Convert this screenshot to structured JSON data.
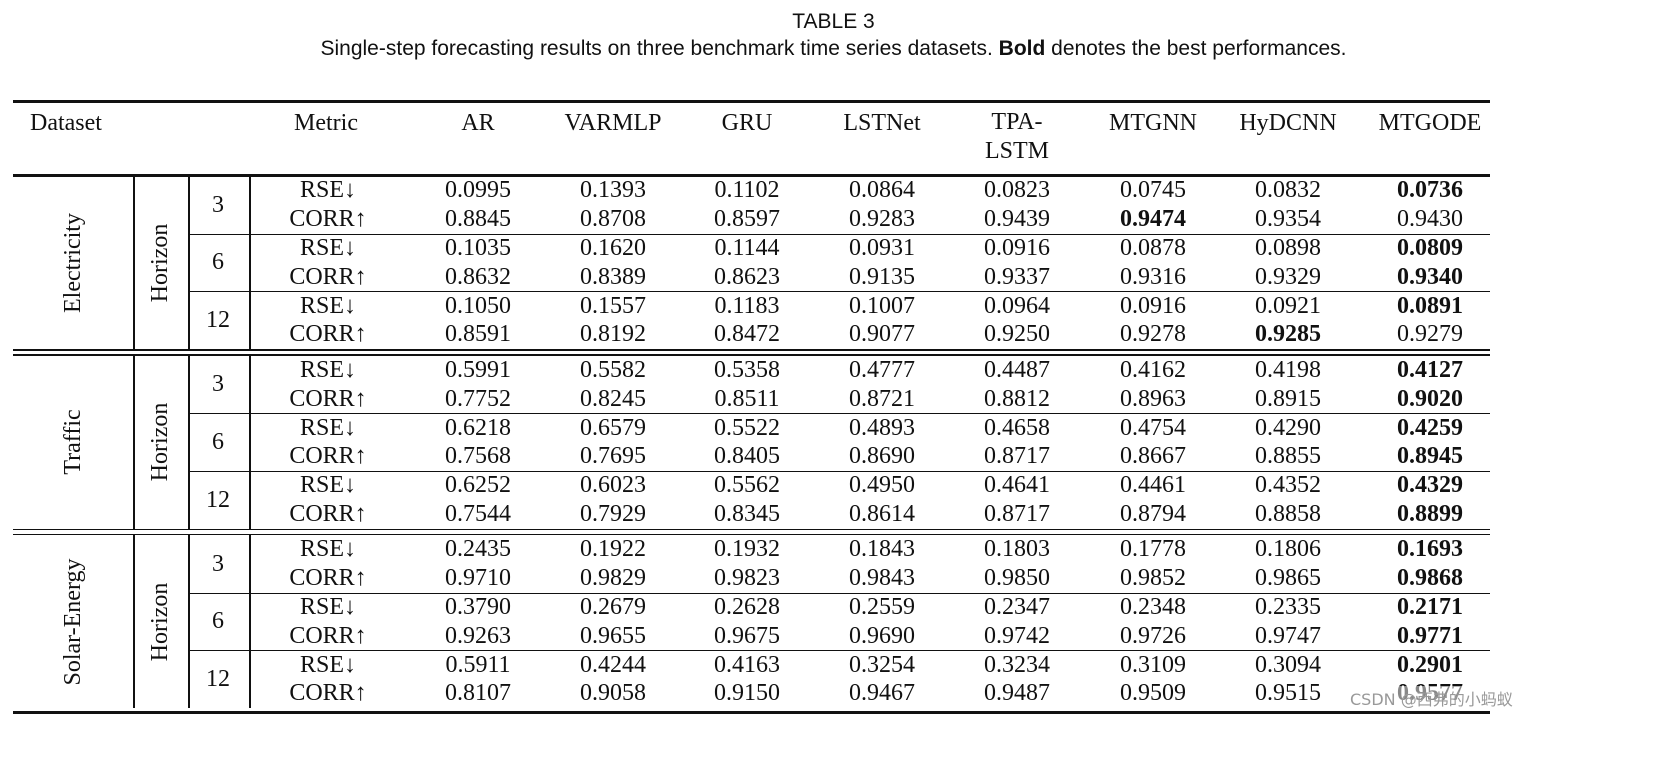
{
  "caption": {
    "label": "TABLE 3",
    "before": "Single-step forecasting results on three benchmark time series datasets. ",
    "bold": "Bold",
    "after": " denotes the best performances."
  },
  "table": {
    "header": [
      "Dataset",
      "Metric",
      "AR",
      "VARMLP",
      "GRU",
      "LSTNet",
      "TPA-LSTM",
      "MTGNN",
      "HyDCNN",
      "MTGODE"
    ],
    "groups": [
      {
        "dataset": "Electricity",
        "horizon_label": "Horizon",
        "horizons": [
          {
            "horizon": "3",
            "rows": [
              {
                "metric": "RSE↓",
                "values": [
                  "0.0995",
                  "0.1393",
                  "0.1102",
                  "0.0864",
                  "0.0823",
                  "0.0745",
                  "0.0832",
                  "0.0736"
                ],
                "bold": 7
              },
              {
                "metric": "CORR↑",
                "values": [
                  "0.8845",
                  "0.8708",
                  "0.8597",
                  "0.9283",
                  "0.9439",
                  "0.9474",
                  "0.9354",
                  "0.9430"
                ],
                "bold": 5
              }
            ]
          },
          {
            "horizon": "6",
            "rows": [
              {
                "metric": "RSE↓",
                "values": [
                  "0.1035",
                  "0.1620",
                  "0.1144",
                  "0.0931",
                  "0.0916",
                  "0.0878",
                  "0.0898",
                  "0.0809"
                ],
                "bold": 7
              },
              {
                "metric": "CORR↑",
                "values": [
                  "0.8632",
                  "0.8389",
                  "0.8623",
                  "0.9135",
                  "0.9337",
                  "0.9316",
                  "0.9329",
                  "0.9340"
                ],
                "bold": 7
              }
            ]
          },
          {
            "horizon": "12",
            "rows": [
              {
                "metric": "RSE↓",
                "values": [
                  "0.1050",
                  "0.1557",
                  "0.1183",
                  "0.1007",
                  "0.0964",
                  "0.0916",
                  "0.0921",
                  "0.0891"
                ],
                "bold": 7
              },
              {
                "metric": "CORR↑",
                "values": [
                  "0.8591",
                  "0.8192",
                  "0.8472",
                  "0.9077",
                  "0.9250",
                  "0.9278",
                  "0.9285",
                  "0.9279"
                ],
                "bold": 6
              }
            ]
          }
        ]
      },
      {
        "dataset": "Traffic",
        "horizon_label": "Horizon",
        "horizons": [
          {
            "horizon": "3",
            "rows": [
              {
                "metric": "RSE↓",
                "values": [
                  "0.5991",
                  "0.5582",
                  "0.5358",
                  "0.4777",
                  "0.4487",
                  "0.4162",
                  "0.4198",
                  "0.4127"
                ],
                "bold": 7
              },
              {
                "metric": "CORR↑",
                "values": [
                  "0.7752",
                  "0.8245",
                  "0.8511",
                  "0.8721",
                  "0.8812",
                  "0.8963",
                  "0.8915",
                  "0.9020"
                ],
                "bold": 7
              }
            ]
          },
          {
            "horizon": "6",
            "rows": [
              {
                "metric": "RSE↓",
                "values": [
                  "0.6218",
                  "0.6579",
                  "0.5522",
                  "0.4893",
                  "0.4658",
                  "0.4754",
                  "0.4290",
                  "0.4259"
                ],
                "bold": 7
              },
              {
                "metric": "CORR↑",
                "values": [
                  "0.7568",
                  "0.7695",
                  "0.8405",
                  "0.8690",
                  "0.8717",
                  "0.8667",
                  "0.8855",
                  "0.8945"
                ],
                "bold": 7
              }
            ]
          },
          {
            "horizon": "12",
            "rows": [
              {
                "metric": "RSE↓",
                "values": [
                  "0.6252",
                  "0.6023",
                  "0.5562",
                  "0.4950",
                  "0.4641",
                  "0.4461",
                  "0.4352",
                  "0.4329"
                ],
                "bold": 7
              },
              {
                "metric": "CORR↑",
                "values": [
                  "0.7544",
                  "0.7929",
                  "0.8345",
                  "0.8614",
                  "0.8717",
                  "0.8794",
                  "0.8858",
                  "0.8899"
                ],
                "bold": 7
              }
            ]
          }
        ]
      },
      {
        "dataset": "Solar-Energy",
        "horizon_label": "Horizon",
        "horizons": [
          {
            "horizon": "3",
            "rows": [
              {
                "metric": "RSE↓",
                "values": [
                  "0.2435",
                  "0.1922",
                  "0.1932",
                  "0.1843",
                  "0.1803",
                  "0.1778",
                  "0.1806",
                  "0.1693"
                ],
                "bold": 7
              },
              {
                "metric": "CORR↑",
                "values": [
                  "0.9710",
                  "0.9829",
                  "0.9823",
                  "0.9843",
                  "0.9850",
                  "0.9852",
                  "0.9865",
                  "0.9868"
                ],
                "bold": 7
              }
            ]
          },
          {
            "horizon": "6",
            "rows": [
              {
                "metric": "RSE↓",
                "values": [
                  "0.3790",
                  "0.2679",
                  "0.2628",
                  "0.2559",
                  "0.2347",
                  "0.2348",
                  "0.2335",
                  "0.2171"
                ],
                "bold": 7
              },
              {
                "metric": "CORR↑",
                "values": [
                  "0.9263",
                  "0.9655",
                  "0.9675",
                  "0.9690",
                  "0.9742",
                  "0.9726",
                  "0.9747",
                  "0.9771"
                ],
                "bold": 7
              }
            ]
          },
          {
            "horizon": "12",
            "rows": [
              {
                "metric": "RSE↓",
                "values": [
                  "0.5911",
                  "0.4244",
                  "0.4163",
                  "0.3254",
                  "0.3234",
                  "0.3109",
                  "0.3094",
                  "0.2901"
                ],
                "bold": 7
              },
              {
                "metric": "CORR↑",
                "values": [
                  "0.8107",
                  "0.9058",
                  "0.9150",
                  "0.9467",
                  "0.9487",
                  "0.9509",
                  "0.9515",
                  "0.9577"
                ],
                "bold": 7
              }
            ]
          }
        ]
      }
    ]
  },
  "watermark": "CSDN @西弗的小蚂蚁"
}
